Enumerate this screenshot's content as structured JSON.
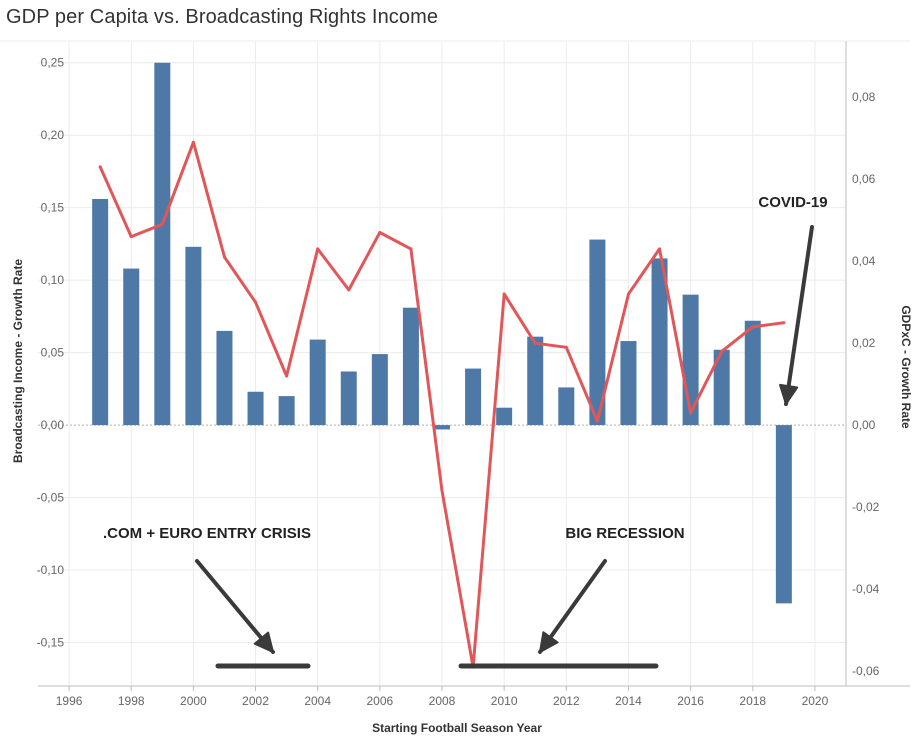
{
  "title": "GDP per Capita vs. Broadcasting Rights Income",
  "chart_data": {
    "type": "bar+line",
    "title": "GDP per Capita vs. Broadcasting Rights Income",
    "xlabel": "Starting Football Season Year",
    "ylabel_left": "Broadcasting Income - Growth Rate",
    "ylabel_right": "GDPxC - Growth Rate",
    "x_ticks": [
      "1996",
      "1998",
      "2000",
      "2002",
      "2004",
      "2006",
      "2008",
      "2010",
      "2012",
      "2014",
      "2016",
      "2018",
      "2020"
    ],
    "x_tick_values": [
      1996,
      1998,
      2000,
      2002,
      2004,
      2006,
      2008,
      2010,
      2012,
      2014,
      2016,
      2018,
      2020
    ],
    "xlim": [
      1995,
      2021
    ],
    "left_ticks": [
      "0,25",
      "0,20",
      "0,15",
      "0,10",
      "0,05",
      "0,00",
      "-0,05",
      "-0,10",
      "-0,15"
    ],
    "left_tick_values": [
      0.25,
      0.2,
      0.15,
      0.1,
      0.05,
      0.0,
      -0.05,
      -0.1,
      -0.15
    ],
    "ylim_left": [
      -0.18,
      0.265
    ],
    "right_ticks": [
      "0,08",
      "0,06",
      "0,04",
      "0,02",
      "0,00",
      "-0,02",
      "-0,04",
      "-0,06"
    ],
    "right_tick_values": [
      0.08,
      0.06,
      0.04,
      0.02,
      0.0,
      -0.02,
      -0.04,
      -0.06
    ],
    "ylim_right": [
      -0.0636,
      0.0937
    ],
    "grid": true,
    "series": [
      {
        "type": "bar",
        "axis": "left",
        "color": "#4e79a7",
        "x": [
          1997,
          1998,
          1999,
          2000,
          2001,
          2002,
          2003,
          2004,
          2005,
          2006,
          2007,
          2008,
          2009,
          2010,
          2011,
          2012,
          2013,
          2014,
          2015,
          2016,
          2017,
          2018,
          2019
        ],
        "values": [
          0.156,
          0.108,
          0.25,
          0.123,
          0.065,
          0.023,
          0.02,
          0.059,
          0.037,
          0.049,
          0.081,
          -0.003,
          0.039,
          0.012,
          0.061,
          0.026,
          0.128,
          0.058,
          0.115,
          0.09,
          0.052,
          0.072,
          -0.123
        ]
      },
      {
        "type": "line",
        "axis": "right",
        "color": "#e15759",
        "x": [
          1997,
          1998,
          1999,
          2000,
          2001,
          2002,
          2003,
          2004,
          2005,
          2006,
          2007,
          2008,
          2009,
          2010,
          2011,
          2012,
          2013,
          2014,
          2015,
          2016,
          2017,
          2018,
          2019
        ],
        "values": [
          0.063,
          0.046,
          0.049,
          0.069,
          0.041,
          0.03,
          0.012,
          0.043,
          0.033,
          0.047,
          0.043,
          -0.016,
          -0.059,
          0.032,
          0.02,
          0.019,
          0.001,
          0.032,
          0.043,
          0.003,
          0.018,
          0.024,
          0.025
        ]
      }
    ],
    "annotations": [
      {
        "text": ".COM + EURO ENTRY CRISIS"
      },
      {
        "text": "BIG RECESSION"
      },
      {
        "text": "COVID-19"
      }
    ]
  }
}
